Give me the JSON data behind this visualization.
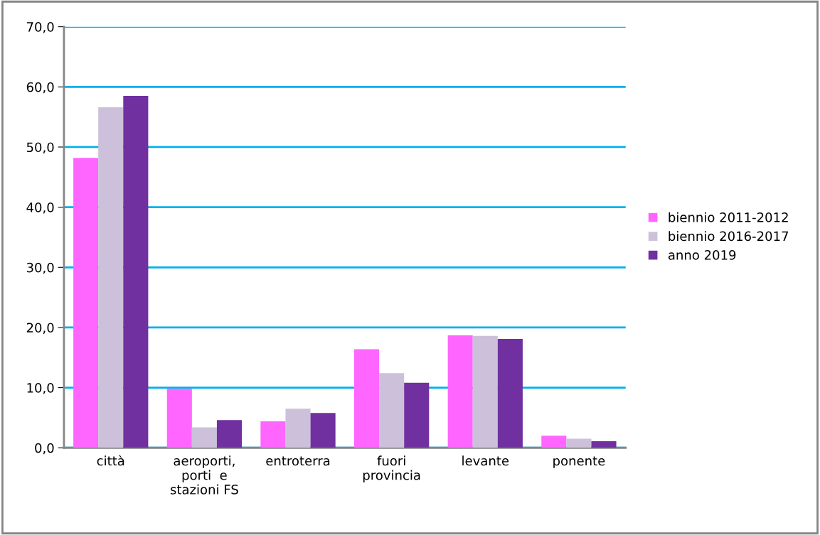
{
  "chart_data": {
    "type": "bar",
    "categories": [
      "città",
      "aeroporti,\nporti  e\nstazioni FS",
      "entroterra",
      "fuori\nprovincia",
      "levante",
      "ponente"
    ],
    "series": [
      {
        "name": "biennio 2011-2012",
        "color": "#ff66ff",
        "values": [
          48.2,
          9.8,
          4.4,
          16.4,
          18.7,
          2.0
        ]
      },
      {
        "name": "biennio 2016-2017",
        "color": "#ccc0da",
        "values": [
          56.6,
          3.4,
          6.5,
          12.4,
          18.6,
          1.5
        ]
      },
      {
        "name": "anno 2019",
        "color": "#7030a0",
        "values": [
          58.5,
          4.6,
          5.8,
          10.8,
          18.1,
          1.1
        ]
      }
    ],
    "ylim": [
      0,
      70
    ],
    "yticks": [
      {
        "value": 0,
        "label": "0,0"
      },
      {
        "value": 10,
        "label": "10,0"
      },
      {
        "value": 20,
        "label": "20,0"
      },
      {
        "value": 30,
        "label": "30,0"
      },
      {
        "value": 40,
        "label": "40,0"
      },
      {
        "value": 50,
        "label": "50,0"
      },
      {
        "value": 60,
        "label": "60,0"
      },
      {
        "value": 70,
        "label": "70,0"
      }
    ],
    "grid": "y",
    "legend": "right"
  }
}
